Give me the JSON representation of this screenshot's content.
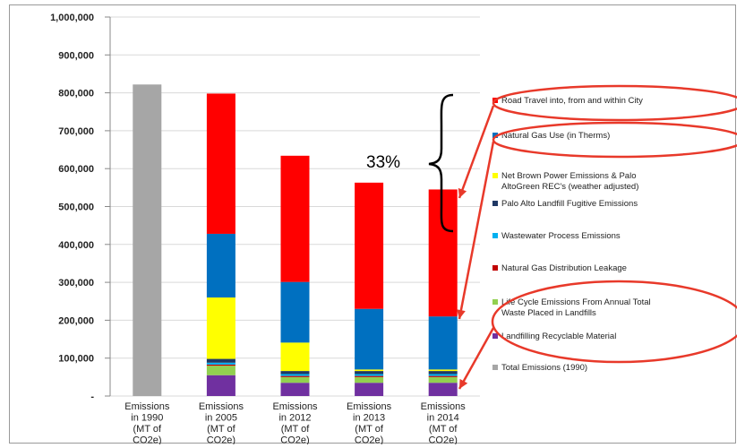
{
  "chart_data": {
    "type": "bar",
    "stacked": true,
    "title": "",
    "xlabel": "",
    "ylabel": "",
    "ylim": [
      0,
      1000000
    ],
    "y_ticks": [
      "1,000,000",
      "900,000",
      "800,000",
      "700,000",
      "600,000",
      "500,000",
      "400,000",
      "300,000",
      "200,000",
      "100,000",
      "-"
    ],
    "y_tick_values": [
      1000000,
      900000,
      800000,
      700000,
      600000,
      500000,
      400000,
      300000,
      200000,
      100000,
      0
    ],
    "categories": [
      [
        "Emissions",
        "in 1990",
        "(MT of",
        "CO2e)"
      ],
      [
        "Emissions",
        "in 2005",
        "(MT of",
        "CO2e)"
      ],
      [
        "Emissions",
        "in 2012",
        "(MT of",
        "CO2e)"
      ],
      [
        "Emissions",
        "in 2013",
        "(MT of",
        "CO2e)"
      ],
      [
        "Emissions",
        "in 2014",
        "(MT of",
        "CO2e)"
      ]
    ],
    "grid": true,
    "legend_position": "right",
    "series": [
      {
        "name": "Landfilling Recyclable Material",
        "color": "#7030a0",
        "values": [
          0,
          55000,
          35000,
          35000,
          35000
        ]
      },
      {
        "name": "Life Cycle Emissions From Annual Total Waste Placed in Landfills",
        "color": "#92d050",
        "values": [
          0,
          25000,
          15000,
          15000,
          15000
        ]
      },
      {
        "name": "Natural Gas Distribution Leakage",
        "color": "#c00000",
        "values": [
          0,
          3000,
          3000,
          3000,
          3000
        ]
      },
      {
        "name": "Wastewater Process Emissions",
        "color": "#00b0f0",
        "values": [
          0,
          5000,
          5000,
          5000,
          5000
        ]
      },
      {
        "name": "Palo Alto Landfill Fugitive Emissions",
        "color": "#1f3864",
        "values": [
          0,
          10000,
          8000,
          8000,
          8000
        ]
      },
      {
        "name": "Net Brown Power Emissions & Palo AltoGreen REC's (weather adjusted)",
        "color": "#ffff00",
        "values": [
          0,
          162000,
          75000,
          4000,
          4000
        ]
      },
      {
        "name": "Natural Gas Use (in Therms)",
        "color": "#0070c0",
        "values": [
          0,
          168000,
          160000,
          160000,
          140000
        ]
      },
      {
        "name": "Road Travel into, from and within City",
        "color": "#ff0000",
        "values": [
          0,
          370000,
          333000,
          333000,
          335000
        ]
      },
      {
        "name": "Total Emissions (1990)",
        "color": "#a6a6a6",
        "values": [
          822000,
          0,
          0,
          0,
          0
        ]
      }
    ],
    "legend_order": [
      7,
      6,
      5,
      4,
      3,
      2,
      1,
      0,
      8
    ],
    "legend_lines": [
      [
        "Road Travel into, from and within City"
      ],
      [
        "Natural Gas Use (in Therms)"
      ],
      [
        "Net Brown Power Emissions & Palo",
        "AltoGreen REC's (weather adjusted)"
      ],
      [
        "Palo Alto Landfill Fugitive Emissions"
      ],
      [
        "Wastewater Process Emissions"
      ],
      [
        "Natural Gas Distribution Leakage"
      ],
      [
        "Life Cycle Emissions From Annual Total",
        "Waste Placed in Landfills"
      ],
      [
        "Landfilling Recyclable Material"
      ],
      [
        "Total Emissions (1990)"
      ]
    ],
    "annotations": {
      "percent_label": "33%",
      "highlight_color": "#e8392a"
    }
  }
}
